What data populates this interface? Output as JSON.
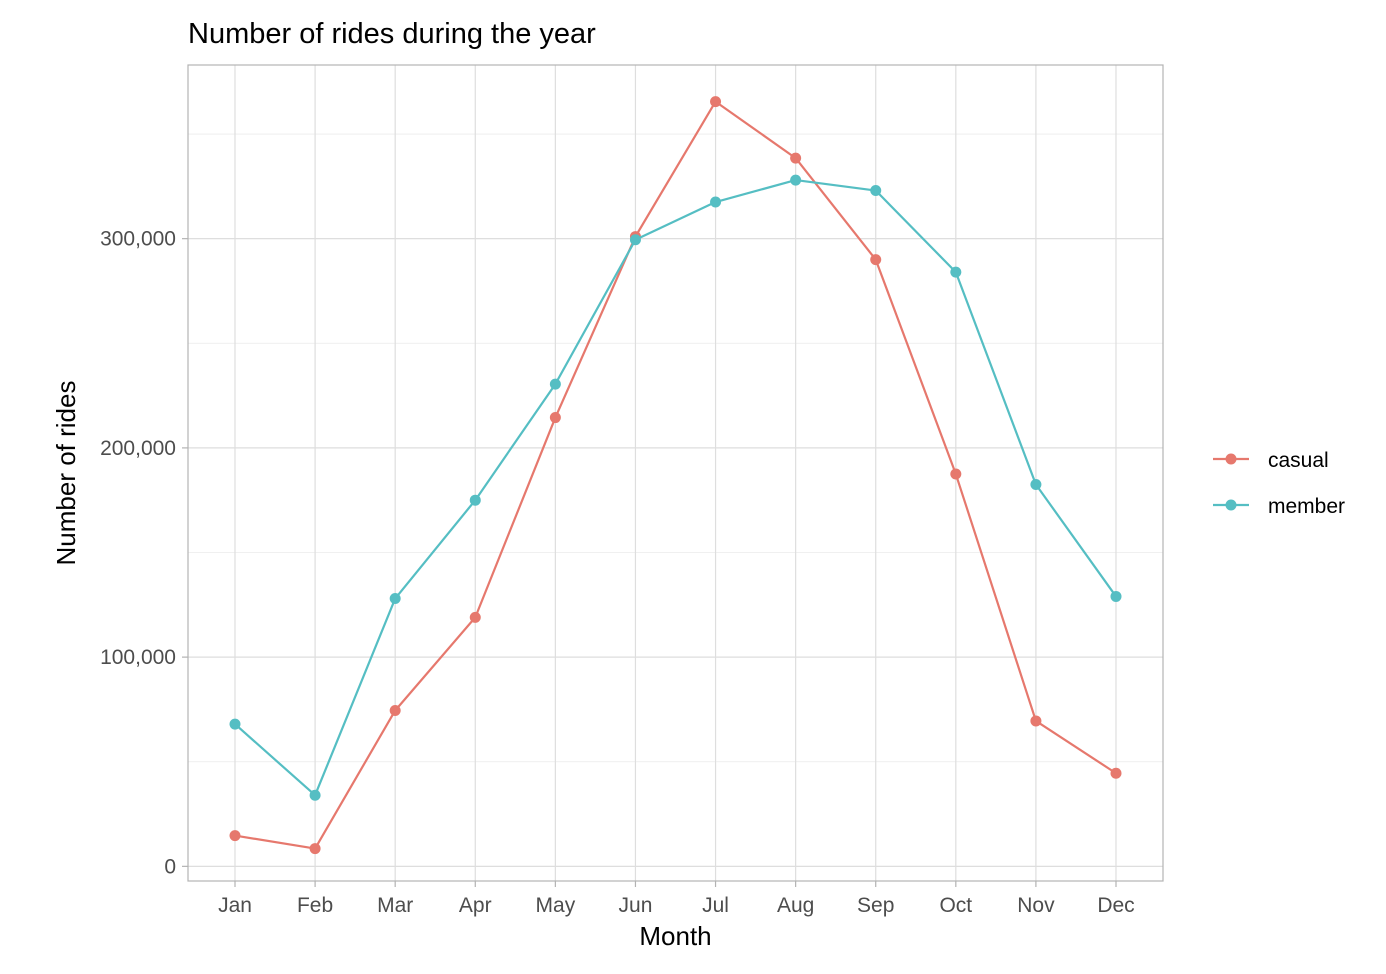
{
  "chart_data": {
    "type": "line",
    "title": "Number of rides during the year",
    "xlabel": "Month",
    "ylabel": "Number of rides",
    "categories": [
      "Jan",
      "Feb",
      "Mar",
      "Apr",
      "May",
      "Jun",
      "Jul",
      "Aug",
      "Sep",
      "Oct",
      "Nov",
      "Dec"
    ],
    "y_ticks": [
      0,
      100000,
      200000,
      300000
    ],
    "y_tick_labels": [
      "0",
      "100,000",
      "200,000",
      "300,000"
    ],
    "ylim": [
      -7000,
      383000
    ],
    "grid": true,
    "legend_position": "right",
    "series": [
      {
        "name": "casual",
        "color": "#E6786D",
        "values": [
          14700,
          8500,
          74500,
          119000,
          214500,
          301000,
          365500,
          338500,
          290000,
          187500,
          69500,
          44500
        ]
      },
      {
        "name": "member",
        "color": "#55BEC3",
        "values": [
          68000,
          34000,
          128000,
          175000,
          230500,
          299500,
          317500,
          328000,
          323000,
          284000,
          182500,
          129000
        ]
      }
    ]
  }
}
